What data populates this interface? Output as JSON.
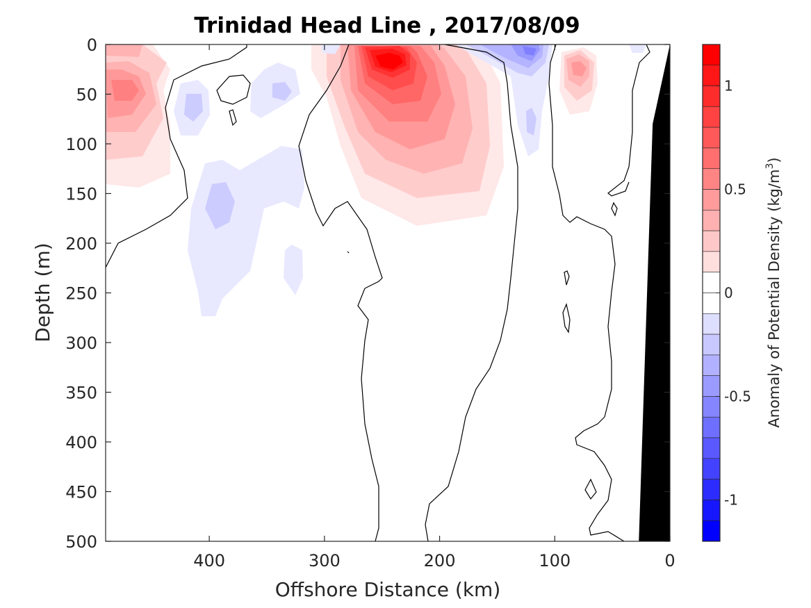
{
  "chart_data": {
    "type": "heatmap",
    "title": "Trinidad Head Line , 2017/08/09",
    "xlabel": "Offshore Distance (km)",
    "ylabel": "Depth (m)",
    "xlim": [
      490,
      0
    ],
    "ylim": [
      0,
      500
    ],
    "x_ticks": [
      400,
      300,
      200,
      100,
      0
    ],
    "y_ticks": [
      0,
      50,
      100,
      150,
      200,
      250,
      300,
      350,
      400,
      450,
      500
    ],
    "colorbar": {
      "label_main": "Anomaly of Potential Density (kg/m",
      "label_sup": "3",
      "label_end": ")",
      "range": [
        -1.2,
        1.2
      ],
      "step": 0.1,
      "ticks": [
        {
          "value": 1,
          "label": "1"
        },
        {
          "value": 0.5,
          "label": "0.5"
        },
        {
          "value": 0,
          "label": "0"
        },
        {
          "value": -0.5,
          "label": "-0.5"
        },
        {
          "value": -1,
          "label": "-1"
        }
      ]
    },
    "colors": {
      "positive_max": "#ff0000",
      "negative_max": "#0000ff",
      "neutral": "#ffffff",
      "bathymetry": "#000000"
    },
    "anomalies": [
      {
        "x": 240,
        "y": 25,
        "value": 1.2
      },
      {
        "x": 470,
        "y": 45,
        "value": 0.5
      },
      {
        "x": 82,
        "y": 20,
        "value": 0.5
      },
      {
        "x": 125,
        "y": 10,
        "value": -0.6
      },
      {
        "x": 395,
        "y": 160,
        "value": -0.3
      },
      {
        "x": 335,
        "y": 45,
        "value": -0.25
      },
      {
        "x": 405,
        "y": 60,
        "value": -0.25
      },
      {
        "x": 120,
        "y": 80,
        "value": -0.25
      },
      {
        "x": 300,
        "y": 0,
        "value": -0.15
      },
      {
        "x": 30,
        "y": 0,
        "value": -0.15
      }
    ],
    "bathymetry": [
      {
        "x": 0,
        "depth": 0
      },
      {
        "x": 15,
        "depth": 80
      },
      {
        "x": 27,
        "depth": 500
      }
    ]
  }
}
